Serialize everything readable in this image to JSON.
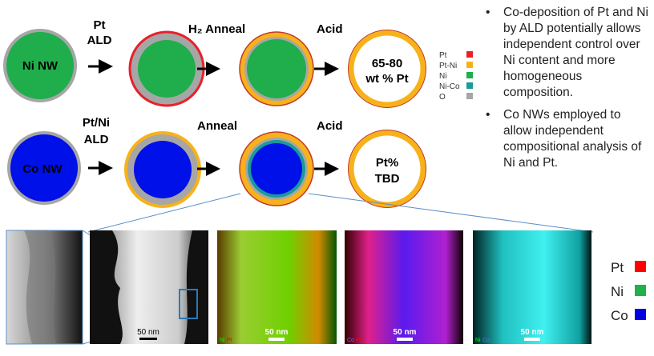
{
  "row1": {
    "start_label": "Ni NW",
    "step1": [
      "Pt",
      "ALD"
    ],
    "step2": "H₂ Anneal",
    "step3": "Acid",
    "result": [
      "65-80",
      "wt % Pt"
    ]
  },
  "row2": {
    "start_label": "Co NW",
    "step1": [
      "Pt/Ni",
      "ALD"
    ],
    "step2": "Anneal",
    "step3": "Acid",
    "result": [
      "Pt%",
      "TBD"
    ]
  },
  "legend": [
    {
      "label": "Pt",
      "color": "#e8202a"
    },
    {
      "label": "Pt-Ni",
      "color": "#f7b21b"
    },
    {
      "label": "Ni",
      "color": "#1fae4b"
    },
    {
      "label": "Ni-Co",
      "color": "#1a9a9a"
    },
    {
      "label": "O",
      "color": "#a6a6a6"
    }
  ],
  "bullets": [
    "Co-deposition of Pt and Ni by ALD potentially allows independent control over Ni content and more homogeneous composition.",
    "Co NWs employed to allow independent compositional analysis of Ni and Pt."
  ],
  "micrographs": {
    "scale_bar": "50 nm",
    "panel3_tags": [
      "Ni",
      "Pt"
    ],
    "panel4_tags": [
      "Co",
      "Pt"
    ],
    "panel5_tags": [
      "Ni",
      "Co"
    ]
  },
  "element_legend": [
    {
      "label": "Pt",
      "color": "#ff0000"
    },
    {
      "label": "Ni",
      "color": "#22b04b"
    },
    {
      "label": "Co",
      "color": "#0000e0"
    }
  ]
}
